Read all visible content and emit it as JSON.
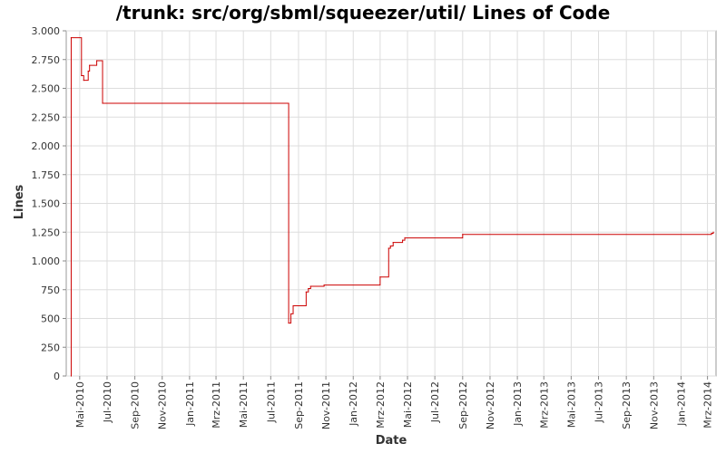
{
  "chart_data": {
    "type": "line",
    "title": "/trunk: src/org/sbml/squeezer/util/ Lines of Code",
    "xlabel": "Date",
    "ylabel": "Lines",
    "line_style": "step",
    "grid": true,
    "series_color": "#cc0000",
    "ylim": [
      0,
      3000
    ],
    "xlim": [
      "2010-04-01",
      "2014-03-20"
    ],
    "y_ticks": [
      {
        "value": 0,
        "label": "0"
      },
      {
        "value": 250,
        "label": "250"
      },
      {
        "value": 500,
        "label": "500"
      },
      {
        "value": 750,
        "label": "750"
      },
      {
        "value": 1000,
        "label": "1.000"
      },
      {
        "value": 1250,
        "label": "1.250"
      },
      {
        "value": 1500,
        "label": "1.500"
      },
      {
        "value": 1750,
        "label": "1.750"
      },
      {
        "value": 2000,
        "label": "2.000"
      },
      {
        "value": 2250,
        "label": "2.250"
      },
      {
        "value": 2500,
        "label": "2.500"
      },
      {
        "value": 2750,
        "label": "2.750"
      },
      {
        "value": 3000,
        "label": "3.000"
      }
    ],
    "x_ticks": [
      {
        "date": "2010-05-01",
        "label": "Mai-2010"
      },
      {
        "date": "2010-07-01",
        "label": "Jul-2010"
      },
      {
        "date": "2010-09-01",
        "label": "Sep-2010"
      },
      {
        "date": "2010-11-01",
        "label": "Nov-2010"
      },
      {
        "date": "2011-01-01",
        "label": "Jan-2011"
      },
      {
        "date": "2011-03-01",
        "label": "Mrz-2011"
      },
      {
        "date": "2011-05-01",
        "label": "Mai-2011"
      },
      {
        "date": "2011-07-01",
        "label": "Jul-2011"
      },
      {
        "date": "2011-09-01",
        "label": "Sep-2011"
      },
      {
        "date": "2011-11-01",
        "label": "Nov-2011"
      },
      {
        "date": "2012-01-01",
        "label": "Jan-2012"
      },
      {
        "date": "2012-03-01",
        "label": "Mrz-2012"
      },
      {
        "date": "2012-05-01",
        "label": "Mai-2012"
      },
      {
        "date": "2012-07-01",
        "label": "Jul-2012"
      },
      {
        "date": "2012-09-01",
        "label": "Sep-2012"
      },
      {
        "date": "2012-11-01",
        "label": "Nov-2012"
      },
      {
        "date": "2013-01-01",
        "label": "Jan-2013"
      },
      {
        "date": "2013-03-01",
        "label": "Mrz-2013"
      },
      {
        "date": "2013-05-01",
        "label": "Mai-2013"
      },
      {
        "date": "2013-07-01",
        "label": "Jul-2013"
      },
      {
        "date": "2013-09-01",
        "label": "Sep-2013"
      },
      {
        "date": "2013-11-01",
        "label": "Nov-2013"
      },
      {
        "date": "2014-01-01",
        "label": "Jan-2014"
      },
      {
        "date": "2014-03-01",
        "label": "Mrz-2014"
      }
    ],
    "series": [
      {
        "points": [
          [
            "2010-04-12",
            0
          ],
          [
            "2010-04-12",
            2940
          ],
          [
            "2010-05-05",
            2610
          ],
          [
            "2010-05-10",
            2570
          ],
          [
            "2010-05-20",
            2650
          ],
          [
            "2010-05-23",
            2700
          ],
          [
            "2010-06-08",
            2740
          ],
          [
            "2010-06-21",
            2370
          ],
          [
            "2011-08-10",
            460
          ],
          [
            "2011-08-15",
            540
          ],
          [
            "2011-08-20",
            610
          ],
          [
            "2011-09-18",
            730
          ],
          [
            "2011-09-23",
            760
          ],
          [
            "2011-09-28",
            780
          ],
          [
            "2011-10-28",
            790
          ],
          [
            "2012-03-01",
            860
          ],
          [
            "2012-03-20",
            1110
          ],
          [
            "2012-03-24",
            1130
          ],
          [
            "2012-03-30",
            1160
          ],
          [
            "2012-04-20",
            1180
          ],
          [
            "2012-04-25",
            1200
          ],
          [
            "2012-09-01",
            1230
          ],
          [
            "2014-03-10",
            1240
          ],
          [
            "2014-03-14",
            1250
          ]
        ]
      }
    ]
  }
}
